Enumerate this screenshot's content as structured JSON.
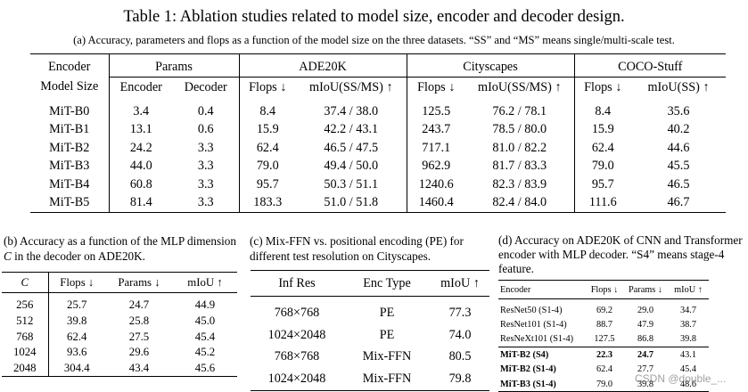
{
  "title": "Table 1: Ablation studies related to model size, encoder and decoder design.",
  "table_a": {
    "caption": "(a) Accuracy, parameters and flops as a function of the model size on the three datasets. “SS” and “MS” means single/multi-scale test.",
    "header_group": {
      "encoder": "Encoder",
      "params": "Params",
      "ade": "ADE20K",
      "city": "Cityscapes",
      "coco": "COCO-Stuff"
    },
    "header_sub": [
      "Model Size",
      "Encoder",
      "Decoder",
      "Flops ↓",
      "mIoU(SS/MS) ↑",
      "Flops ↓",
      "mIoU(SS/MS) ↑",
      "Flops ↓",
      "mIoU(SS) ↑"
    ],
    "rows": [
      [
        "MiT-B0",
        "3.4",
        "0.4",
        "8.4",
        "37.4 / 38.0",
        "125.5",
        "76.2 / 78.1",
        "8.4",
        "35.6"
      ],
      [
        "MiT-B1",
        "13.1",
        "0.6",
        "15.9",
        "42.2 / 43.1",
        "243.7",
        "78.5 / 80.0",
        "15.9",
        "40.2"
      ],
      [
        "MiT-B2",
        "24.2",
        "3.3",
        "62.4",
        "46.5 / 47.5",
        "717.1",
        "81.0 / 82.2",
        "62.4",
        "44.6"
      ],
      [
        "MiT-B3",
        "44.0",
        "3.3",
        "79.0",
        "49.4 / 50.0",
        "962.9",
        "81.7 / 83.3",
        "79.0",
        "45.5"
      ],
      [
        "MiT-B4",
        "60.8",
        "3.3",
        "95.7",
        "50.3 / 51.1",
        "1240.6",
        "82.3 / 83.9",
        "95.7",
        "46.5"
      ],
      [
        "MiT-B5",
        "81.4",
        "3.3",
        "183.3",
        "51.0 / 51.8",
        "1460.4",
        "82.4 / 84.0",
        "111.6",
        "46.7"
      ]
    ]
  },
  "table_b": {
    "caption_1": "(b) Accuracy as a function of the MLP dimension ",
    "caption_var": "C",
    "caption_2": " in the decoder on ADE20K.",
    "header": [
      "C",
      "Flops ↓",
      "Params ↓",
      "mIoU ↑"
    ],
    "rows": [
      [
        "256",
        "25.7",
        "24.7",
        "44.9"
      ],
      [
        "512",
        "39.8",
        "25.8",
        "45.0"
      ],
      [
        "768",
        "62.4",
        "27.5",
        "45.4"
      ],
      [
        "1024",
        "93.6",
        "29.6",
        "45.2"
      ],
      [
        "2048",
        "304.4",
        "43.4",
        "45.6"
      ]
    ]
  },
  "table_c": {
    "caption": "(c) Mix-FFN vs. positional encoding (PE) for different test resolution on Cityscapes.",
    "header": [
      "Inf Res",
      "Enc Type",
      "mIoU ↑"
    ],
    "rows": [
      [
        "768×768",
        "PE",
        "77.3"
      ],
      [
        "1024×2048",
        "PE",
        "74.0"
      ],
      [
        "768×768",
        "Mix-FFN",
        "80.5"
      ],
      [
        "1024×2048",
        "Mix-FFN",
        "79.8"
      ]
    ]
  },
  "table_d": {
    "caption": "(d) Accuracy on ADE20K of CNN and Transformer encoder with MLP decoder. “S4” means stage-4 feature.",
    "header": [
      "Encoder",
      "Flops ↓",
      "Params ↓",
      "mIoU ↑"
    ],
    "rows": [
      [
        "ResNet50 (S1-4)",
        "69.2",
        "29.0",
        "34.7"
      ],
      [
        "ResNet101 (S1-4)",
        "88.7",
        "47.9",
        "38.7"
      ],
      [
        "ResNeXt101 (S1-4)",
        "127.5",
        "86.8",
        "39.8"
      ],
      [
        "MiT-B2 (S4)",
        "22.3",
        "24.7",
        "43.1"
      ],
      [
        "MiT-B2 (S1-4)",
        "62.4",
        "27.7",
        "45.4"
      ],
      [
        "MiT-B3 (S1-4)",
        "79.0",
        "39.8",
        "48.6"
      ]
    ]
  },
  "watermark": "CSDN @double_..."
}
